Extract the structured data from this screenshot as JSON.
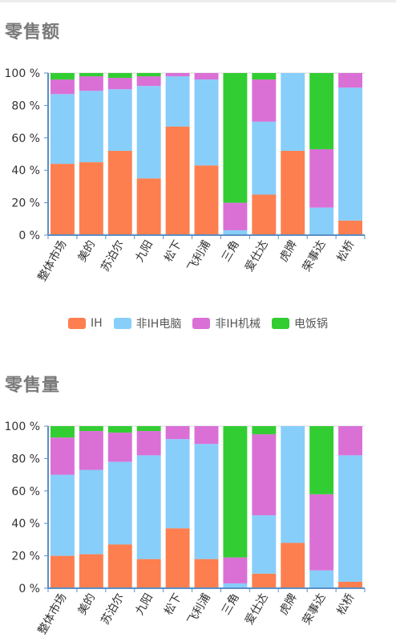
{
  "colors": {
    "IH": "#fd7f4f",
    "nonIH_pc": "#87cefa",
    "nonIH_mech": "#da70d6",
    "rice_cooker": "#32cd32",
    "axis": "#5b8ec4"
  },
  "legend": {
    "items": [
      {
        "label": "IH",
        "color": "#fd7f4f"
      },
      {
        "label": "非IH电脑",
        "color": "#87cefa"
      },
      {
        "label": "非IH机械",
        "color": "#da70d6"
      },
      {
        "label": "电饭锅",
        "color": "#32cd32"
      }
    ]
  },
  "chart_data": [
    {
      "type": "bar",
      "stacked": true,
      "title": "零售额",
      "ylim": [
        0,
        100
      ],
      "yticks": [
        "0 %",
        "20 %",
        "40 %",
        "60 %",
        "80 %",
        "100 %"
      ],
      "categories": [
        "整体市场",
        "美的",
        "苏泊尔",
        "九阳",
        "松下",
        "飞利浦",
        "三角",
        "爱仕达",
        "虎牌",
        "荣事达",
        "松桥"
      ],
      "series": [
        {
          "name": "IH",
          "color": "#fd7f4f",
          "values": [
            44,
            45,
            52,
            35,
            67,
            43,
            0,
            25,
            52,
            0,
            9
          ]
        },
        {
          "name": "非IH电脑",
          "color": "#87cefa",
          "values": [
            43,
            44,
            38,
            57,
            31,
            53,
            3,
            45,
            48,
            17,
            82
          ]
        },
        {
          "name": "非IH机械",
          "color": "#da70d6",
          "values": [
            9,
            9,
            7,
            6,
            2,
            4,
            17,
            26,
            0,
            36,
            9
          ]
        },
        {
          "name": "电饭锅",
          "color": "#32cd32",
          "values": [
            4,
            2,
            3,
            2,
            0,
            0,
            80,
            4,
            0,
            47,
            0
          ]
        }
      ]
    },
    {
      "type": "bar",
      "stacked": true,
      "title": "零售量",
      "ylim": [
        0,
        100
      ],
      "yticks": [
        "0 %",
        "20 %",
        "40 %",
        "60 %",
        "80 %",
        "100 %"
      ],
      "categories": [
        "整体市场",
        "美的",
        "苏泊尔",
        "九阳",
        "松下",
        "飞利浦",
        "三角",
        "爱仕达",
        "虎牌",
        "荣事达",
        "松桥"
      ],
      "series": [
        {
          "name": "IH",
          "color": "#fd7f4f",
          "values": [
            20,
            21,
            27,
            18,
            37,
            18,
            0,
            9,
            28,
            0,
            4
          ]
        },
        {
          "name": "非IH电脑",
          "color": "#87cefa",
          "values": [
            50,
            52,
            51,
            64,
            55,
            71,
            3,
            36,
            72,
            11,
            78
          ]
        },
        {
          "name": "非IH机械",
          "color": "#da70d6",
          "values": [
            23,
            24,
            18,
            15,
            8,
            11,
            16,
            50,
            0,
            47,
            18
          ]
        },
        {
          "name": "电饭锅",
          "color": "#32cd32",
          "values": [
            7,
            3,
            4,
            3,
            0,
            0,
            81,
            5,
            0,
            42,
            0
          ]
        }
      ]
    }
  ]
}
